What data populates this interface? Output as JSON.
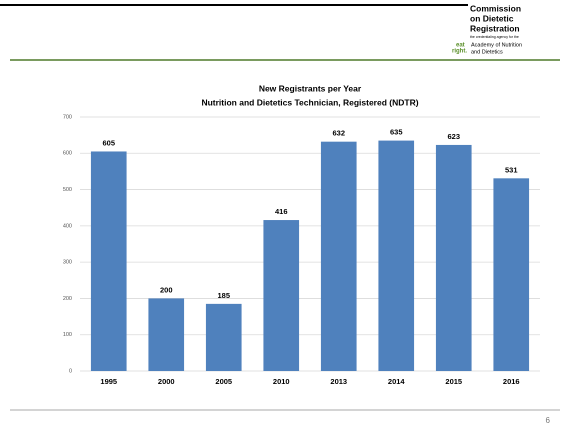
{
  "logo": {
    "lines": [
      "Commission",
      "on Dietetic",
      "Registration"
    ],
    "tagline": "the credentialing agency for the",
    "eat": "eat",
    "right": "right.",
    "academy": [
      "Academy of Nutrition",
      "and Dietetics"
    ]
  },
  "page_number": "6",
  "chart_data": {
    "type": "bar",
    "title": "New Registrants per Year",
    "subtitle": "Nutrition and Dietetics Technician, Registered (NDTR)",
    "categories": [
      "1995",
      "2000",
      "2005",
      "2010",
      "2013",
      "2014",
      "2015",
      "2016"
    ],
    "values": [
      605,
      200,
      185,
      416,
      632,
      635,
      623,
      531
    ],
    "color": "#4f81bd",
    "ylim": [
      0,
      700
    ],
    "yticks": [
      0,
      100,
      200,
      300,
      400,
      500,
      600,
      700
    ],
    "grid": true
  }
}
